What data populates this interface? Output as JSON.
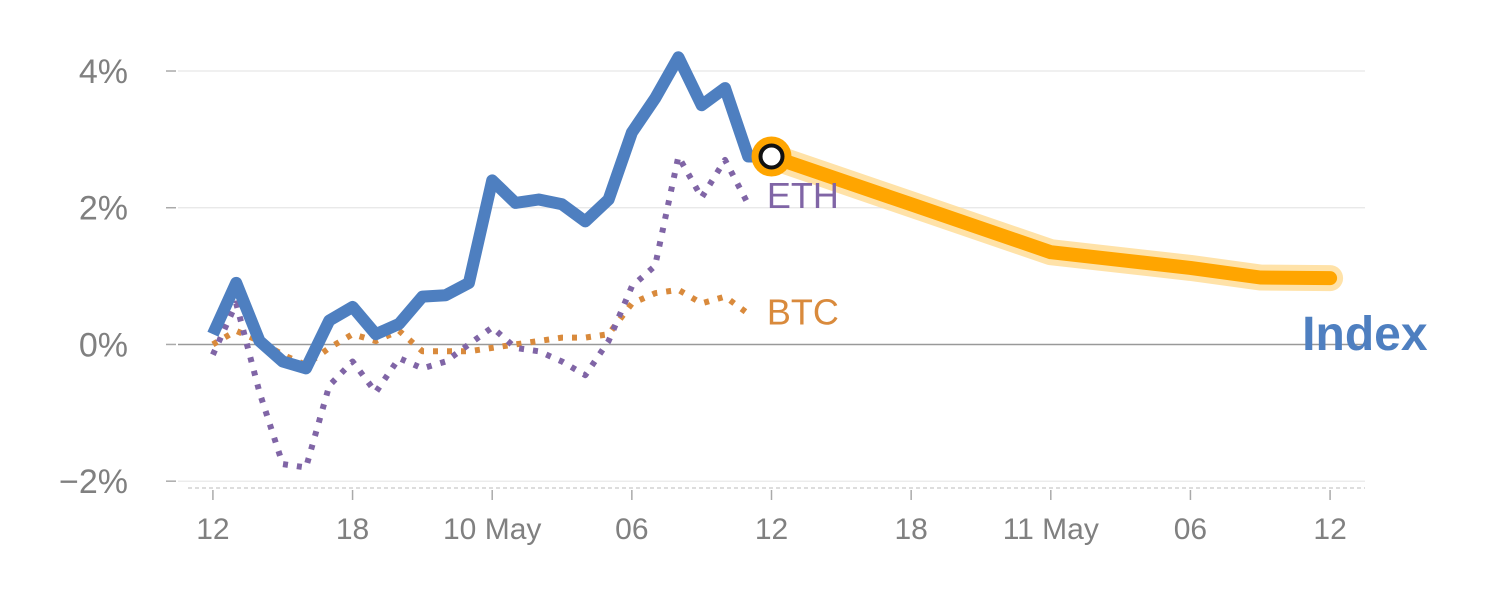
{
  "chart_data": {
    "type": "line",
    "y_ticks": [
      {
        "value": 4,
        "label": "4%"
      },
      {
        "value": 2,
        "label": "2%"
      },
      {
        "value": 0,
        "label": "0%"
      },
      {
        "value": -2,
        "label": "−2%"
      }
    ],
    "x_ticks": [
      {
        "t": 0,
        "label": "12"
      },
      {
        "t": 6,
        "label": "18"
      },
      {
        "t": 12,
        "label": "10 May"
      },
      {
        "t": 18,
        "label": "06"
      },
      {
        "t": 24,
        "label": "12"
      },
      {
        "t": 30,
        "label": "18"
      },
      {
        "t": 36,
        "label": "11 May"
      },
      {
        "t": 42,
        "label": "06"
      },
      {
        "t": 48,
        "label": "12"
      }
    ],
    "ylim": [
      -2.1,
      4.6
    ],
    "xlim": [
      -1.5,
      49.5
    ],
    "grid": true,
    "colors": {
      "index": "#4e7fc0",
      "eth": "#8065a6",
      "btc": "#d98a3c",
      "forecast": "#ffa500",
      "forecast_halo": "#ffdd99",
      "grid": "#e6e6e6",
      "zero_line": "#999999",
      "tick_label": "#808080"
    },
    "series": [
      {
        "name": "Index",
        "style": "solid",
        "points": [
          [
            0,
            0.15
          ],
          [
            1,
            0.9
          ],
          [
            2,
            0.05
          ],
          [
            3,
            -0.25
          ],
          [
            4,
            -0.35
          ],
          [
            5,
            0.35
          ],
          [
            6,
            0.55
          ],
          [
            7,
            0.15
          ],
          [
            8,
            0.3
          ],
          [
            9,
            0.7
          ],
          [
            10,
            0.72
          ],
          [
            11,
            0.9
          ],
          [
            12,
            2.4
          ],
          [
            13,
            2.07
          ],
          [
            14,
            2.12
          ],
          [
            15,
            2.05
          ],
          [
            16,
            1.8
          ],
          [
            17,
            2.12
          ],
          [
            18,
            3.1
          ],
          [
            19,
            3.6
          ],
          [
            20,
            4.2
          ],
          [
            21,
            3.5
          ],
          [
            22,
            3.75
          ],
          [
            23,
            2.75
          ],
          [
            24,
            2.75
          ]
        ]
      },
      {
        "name": "ETH",
        "style": "dotted",
        "points": [
          [
            0,
            -0.15
          ],
          [
            1,
            0.6
          ],
          [
            2,
            -0.7
          ],
          [
            3,
            -1.75
          ],
          [
            4,
            -1.8
          ],
          [
            5,
            -0.6
          ],
          [
            6,
            -0.25
          ],
          [
            7,
            -0.7
          ],
          [
            8,
            -0.2
          ],
          [
            9,
            -0.35
          ],
          [
            10,
            -0.25
          ],
          [
            11,
            0.0
          ],
          [
            12,
            0.25
          ],
          [
            13,
            -0.05
          ],
          [
            14,
            -0.1
          ],
          [
            15,
            -0.25
          ],
          [
            16,
            -0.45
          ],
          [
            17,
            0.05
          ],
          [
            18,
            0.85
          ],
          [
            19,
            1.15
          ],
          [
            20,
            2.75
          ],
          [
            21,
            2.15
          ],
          [
            22,
            2.7
          ],
          [
            23,
            2.05
          ]
        ]
      },
      {
        "name": "BTC",
        "style": "dotted",
        "points": [
          [
            0,
            0.0
          ],
          [
            1,
            0.2
          ],
          [
            2,
            0.05
          ],
          [
            3,
            -0.15
          ],
          [
            4,
            -0.3
          ],
          [
            5,
            -0.05
          ],
          [
            6,
            0.15
          ],
          [
            7,
            0.05
          ],
          [
            8,
            0.2
          ],
          [
            9,
            -0.1
          ],
          [
            10,
            -0.1
          ],
          [
            11,
            -0.1
          ],
          [
            12,
            -0.05
          ],
          [
            13,
            0.0
          ],
          [
            14,
            0.05
          ],
          [
            15,
            0.1
          ],
          [
            16,
            0.1
          ],
          [
            17,
            0.15
          ],
          [
            18,
            0.6
          ],
          [
            19,
            0.75
          ],
          [
            20,
            0.8
          ],
          [
            21,
            0.6
          ],
          [
            22,
            0.7
          ],
          [
            23,
            0.45
          ]
        ]
      },
      {
        "name": "forecast",
        "style": "band",
        "points": [
          [
            24,
            2.75
          ],
          [
            30,
            2.05
          ],
          [
            36,
            1.35
          ],
          [
            42,
            1.12
          ],
          [
            45,
            0.98
          ],
          [
            48,
            0.97
          ]
        ]
      }
    ],
    "labels": [
      {
        "series": "ETH",
        "text": "ETH",
        "at": [
          23.8,
          2.2
        ]
      },
      {
        "series": "BTC",
        "text": "BTC",
        "at": [
          23.8,
          0.5
        ]
      },
      {
        "series": "Index",
        "text": "Index",
        "at": [
          46.8,
          0.12
        ]
      }
    ],
    "marker": {
      "t": 24,
      "value": 2.75
    }
  }
}
